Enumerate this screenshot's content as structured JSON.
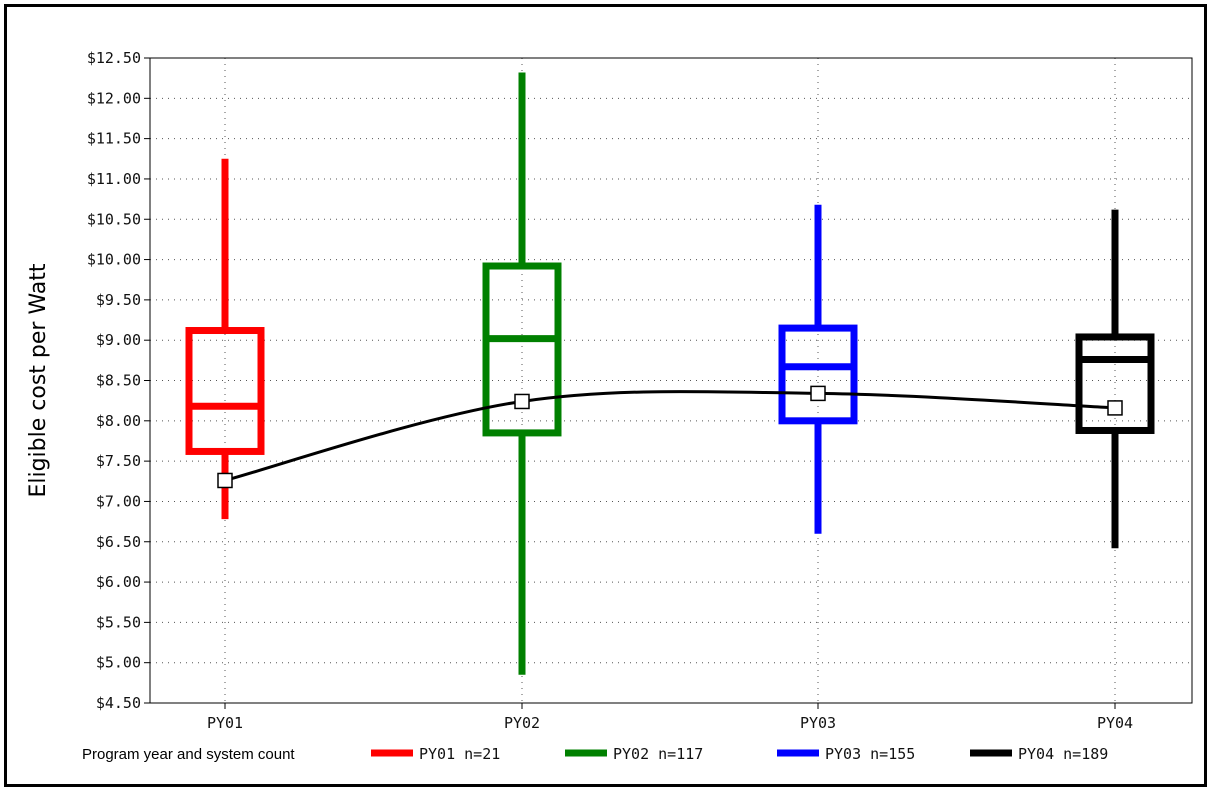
{
  "chart_data": {
    "type": "box",
    "ylabel": "Eligible cost per Watt",
    "ylim": [
      4.5,
      12.5
    ],
    "yticks": [
      "$4.50",
      "$5.00",
      "$5.50",
      "$6.00",
      "$6.50",
      "$7.00",
      "$7.50",
      "$8.00",
      "$8.50",
      "$9.00",
      "$9.50",
      "$10.00",
      "$10.50",
      "$11.00",
      "$11.50",
      "$12.00",
      "$12.50"
    ],
    "categories": [
      "PY01",
      "PY02",
      "PY03",
      "PY04"
    ],
    "grid": true,
    "series": [
      {
        "name": "PY01",
        "color": "#ff0000",
        "whisker_low": 6.78,
        "q1": 7.62,
        "median": 8.18,
        "q3": 9.12,
        "whisker_high": 11.25,
        "mean": 7.26
      },
      {
        "name": "PY02",
        "color": "#008000",
        "whisker_low": 4.85,
        "q1": 7.85,
        "median": 9.02,
        "q3": 9.92,
        "whisker_high": 12.32,
        "mean": 8.24
      },
      {
        "name": "PY03",
        "color": "#0000ff",
        "whisker_low": 6.6,
        "q1": 8.0,
        "median": 8.67,
        "q3": 9.15,
        "whisker_high": 10.68,
        "mean": 8.34
      },
      {
        "name": "PY04",
        "color": "#000000",
        "whisker_low": 6.42,
        "q1": 7.88,
        "median": 8.76,
        "q3": 9.04,
        "whisker_high": 10.62,
        "mean": 8.16
      }
    ],
    "legend": {
      "title": "Program year and system count",
      "position": "bottom",
      "entries": [
        {
          "label": "PY01 n=21",
          "color": "#ff0000"
        },
        {
          "label": "PY02 n=117",
          "color": "#008000"
        },
        {
          "label": "PY03 n=155",
          "color": "#0000ff"
        },
        {
          "label": "PY04 n=189",
          "color": "#000000"
        }
      ]
    }
  }
}
